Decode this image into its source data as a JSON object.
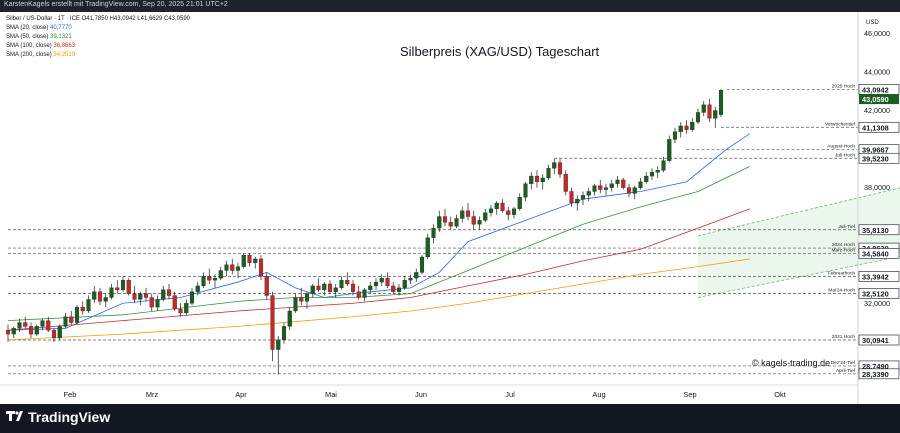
{
  "header": {
    "attribution": "KarstenKagels erstellt mit TradingView.com, Sep 20, 2025 21:01 UTC+2"
  },
  "symbol_line": "Silber / US-Dollar · 1T · ICE  O41,7850  H43,0942  L41,6629  C43,0590",
  "legend": [
    {
      "label": "SMA (20, close)",
      "value": "40,7770",
      "color": "#2962ff"
    },
    {
      "label": "SMA (50, close)",
      "value": "39,1321",
      "color": "#388e3c"
    },
    {
      "label": "SMA (100, close)",
      "value": "36,8663",
      "color": "#c62828"
    },
    {
      "label": "SMA (200, close)",
      "value": "34,2519",
      "color": "#ff9800"
    }
  ],
  "watermark": "© kagels-trading.de",
  "footer": {
    "brand": "TradingView"
  },
  "colors": {
    "up": "#26a69a",
    "down": "#ef5350",
    "candle_body": "#1b5e20",
    "channel_fill": "#e8f5e9",
    "channel_line": "#66bb6a",
    "level_line": "#555555",
    "current_price_bg": "#1b5e20"
  },
  "chart_data": {
    "type": "candlestick",
    "title": "Silberpreis (XAG/USD) Tageschart",
    "currency": "USD",
    "ylim": [
      27.5,
      46.8
    ],
    "y_ticks": [
      {
        "value": 46,
        "label": "46,0000"
      },
      {
        "value": 44,
        "label": "44,0000"
      },
      {
        "value": 42,
        "label": "42,0000"
      },
      {
        "value": 38,
        "label": "38,0000"
      },
      {
        "value": 32,
        "label": "32,0000"
      }
    ],
    "x_axis_labels": [
      "Feb",
      "Mrz",
      "Apr",
      "Mai",
      "Jun",
      "Jul",
      "Aug",
      "Sep",
      "Okt"
    ],
    "levels": [
      {
        "name": "2025 Hoch",
        "value": 43.0942,
        "label": "43,0942"
      },
      {
        "name": "Vorwochentief",
        "value": 41.1308,
        "label": "41,1308"
      },
      {
        "name": "August-Hoch",
        "value": 39.9667,
        "label": "39,9667"
      },
      {
        "name": "Juli-Hoch",
        "value": 39.523,
        "label": "39,5230"
      },
      {
        "name": "Juli-Tief",
        "value": 35.813,
        "label": "35,8130"
      },
      {
        "name": "2024 Hoch",
        "value": 34.863,
        "label": "34,8630"
      },
      {
        "name": "März-Hoch",
        "value": 34.584,
        "label": "34,5840"
      },
      {
        "name": "Februarhoch",
        "value": 33.3942,
        "label": "33,3942"
      },
      {
        "name": "Mai'24-Hoch",
        "value": 32.512,
        "label": "32,5120"
      },
      {
        "name": "2021 Hoch",
        "value": 30.0941,
        "label": "30,0941"
      },
      {
        "name": "Dez'24-Tief",
        "value": 28.749,
        "label": "28,7490"
      },
      {
        "name": "April-Tief",
        "value": 28.339,
        "label": "28,3390"
      }
    ],
    "current_price": {
      "value": 43.059,
      "label": "43,0590"
    },
    "channel": {
      "upper": [
        [
          120,
          35.5
        ],
        [
          260,
          45.4
        ]
      ],
      "lower": [
        [
          120,
          32.3
        ],
        [
          260,
          40.8
        ]
      ]
    },
    "candles": [
      [
        30.6,
        30.9,
        30.0,
        30.4
      ],
      [
        30.4,
        30.8,
        30.2,
        30.7
      ],
      [
        30.7,
        31.2,
        30.5,
        31.0
      ],
      [
        31.0,
        31.3,
        30.7,
        30.8
      ],
      [
        30.8,
        31.0,
        30.2,
        30.4
      ],
      [
        30.4,
        30.9,
        30.3,
        30.8
      ],
      [
        30.8,
        31.2,
        30.6,
        31.1
      ],
      [
        31.1,
        31.3,
        30.5,
        30.6
      ],
      [
        30.6,
        30.7,
        30.0,
        30.2
      ],
      [
        30.2,
        30.9,
        30.1,
        30.8
      ],
      [
        30.8,
        31.5,
        30.7,
        31.3
      ],
      [
        31.3,
        31.6,
        30.9,
        31.0
      ],
      [
        31.0,
        31.9,
        30.9,
        31.8
      ],
      [
        31.8,
        32.1,
        31.4,
        31.6
      ],
      [
        31.6,
        32.4,
        31.5,
        32.2
      ],
      [
        32.2,
        32.9,
        32.0,
        32.6
      ],
      [
        32.6,
        32.8,
        31.9,
        32.1
      ],
      [
        32.1,
        32.5,
        31.8,
        32.3
      ],
      [
        32.3,
        33.0,
        32.2,
        32.8
      ],
      [
        32.8,
        33.2,
        32.5,
        32.7
      ],
      [
        32.7,
        33.4,
        32.6,
        33.2
      ],
      [
        33.2,
        33.3,
        32.4,
        32.5
      ],
      [
        32.5,
        32.9,
        32.0,
        32.2
      ],
      [
        32.2,
        32.6,
        31.9,
        32.5
      ],
      [
        32.5,
        32.8,
        32.1,
        32.3
      ],
      [
        32.3,
        32.5,
        31.6,
        31.8
      ],
      [
        31.8,
        32.4,
        31.6,
        32.2
      ],
      [
        32.2,
        32.9,
        32.1,
        32.7
      ],
      [
        32.7,
        33.0,
        32.2,
        32.4
      ],
      [
        32.4,
        32.6,
        31.6,
        31.7
      ],
      [
        31.7,
        32.0,
        31.3,
        31.5
      ],
      [
        31.5,
        32.2,
        31.4,
        32.0
      ],
      [
        32.0,
        32.8,
        31.9,
        32.6
      ],
      [
        32.6,
        33.1,
        32.4,
        32.9
      ],
      [
        32.9,
        33.6,
        32.8,
        33.4
      ],
      [
        33.4,
        33.8,
        33.0,
        33.2
      ],
      [
        33.2,
        33.5,
        32.8,
        33.3
      ],
      [
        33.3,
        33.9,
        33.2,
        33.7
      ],
      [
        33.7,
        34.2,
        33.4,
        34.0
      ],
      [
        34.0,
        34.3,
        33.5,
        33.7
      ],
      [
        33.7,
        34.1,
        33.3,
        33.9
      ],
      [
        33.9,
        34.6,
        33.8,
        34.5
      ],
      [
        34.5,
        34.6,
        33.9,
        34.1
      ],
      [
        34.1,
        34.4,
        33.8,
        34.3
      ],
      [
        34.3,
        34.5,
        33.2,
        33.4
      ],
      [
        33.4,
        33.6,
        32.2,
        32.4
      ],
      [
        32.4,
        32.6,
        29.0,
        29.6
      ],
      [
        29.6,
        30.3,
        28.3,
        30.1
      ],
      [
        30.1,
        31.0,
        29.9,
        30.8
      ],
      [
        30.8,
        31.8,
        30.6,
        31.6
      ],
      [
        31.6,
        32.5,
        31.5,
        32.3
      ],
      [
        32.3,
        32.8,
        31.9,
        32.1
      ],
      [
        32.1,
        32.6,
        31.7,
        32.5
      ],
      [
        32.5,
        33.0,
        32.3,
        32.9
      ],
      [
        32.9,
        33.3,
        32.6,
        32.7
      ],
      [
        32.7,
        33.1,
        32.4,
        33.0
      ],
      [
        33.0,
        33.2,
        32.5,
        32.6
      ],
      [
        32.6,
        33.0,
        32.3,
        32.8
      ],
      [
        32.8,
        33.4,
        32.7,
        33.2
      ],
      [
        33.2,
        33.6,
        32.9,
        33.0
      ],
      [
        33.0,
        33.2,
        32.4,
        32.6
      ],
      [
        32.6,
        32.9,
        32.2,
        32.3
      ],
      [
        32.3,
        32.8,
        32.1,
        32.7
      ],
      [
        32.7,
        33.1,
        32.5,
        32.9
      ],
      [
        32.9,
        33.3,
        32.7,
        33.1
      ],
      [
        33.1,
        33.5,
        32.9,
        33.3
      ],
      [
        33.3,
        33.6,
        32.8,
        32.9
      ],
      [
        32.9,
        33.1,
        32.5,
        32.6
      ],
      [
        32.6,
        33.0,
        32.4,
        32.8
      ],
      [
        32.8,
        33.4,
        32.7,
        33.2
      ],
      [
        33.2,
        33.5,
        33.0,
        33.3
      ],
      [
        33.3,
        33.8,
        33.1,
        33.6
      ],
      [
        33.6,
        34.5,
        33.5,
        34.4
      ],
      [
        34.4,
        35.6,
        34.3,
        35.4
      ],
      [
        35.4,
        36.1,
        35.1,
        35.9
      ],
      [
        35.9,
        36.8,
        35.7,
        36.5
      ],
      [
        36.5,
        36.9,
        36.0,
        36.2
      ],
      [
        36.2,
        36.5,
        35.8,
        36.0
      ],
      [
        36.0,
        36.6,
        35.9,
        36.4
      ],
      [
        36.4,
        37.0,
        36.2,
        36.8
      ],
      [
        36.8,
        37.2,
        36.3,
        36.5
      ],
      [
        36.5,
        36.8,
        35.8,
        36.1
      ],
      [
        36.1,
        36.5,
        35.8,
        36.3
      ],
      [
        36.3,
        36.9,
        36.2,
        36.7
      ],
      [
        36.7,
        37.1,
        36.5,
        36.9
      ],
      [
        36.9,
        37.3,
        36.6,
        37.2
      ],
      [
        37.2,
        37.4,
        36.7,
        36.8
      ],
      [
        36.8,
        37.0,
        36.3,
        36.6
      ],
      [
        36.6,
        37.0,
        36.4,
        36.9
      ],
      [
        36.9,
        37.7,
        36.8,
        37.5
      ],
      [
        37.5,
        38.3,
        37.3,
        38.2
      ],
      [
        38.2,
        38.8,
        37.9,
        38.6
      ],
      [
        38.6,
        38.9,
        38.0,
        38.3
      ],
      [
        38.3,
        38.7,
        37.9,
        38.5
      ],
      [
        38.5,
        39.2,
        38.4,
        39.0
      ],
      [
        39.0,
        39.5,
        38.7,
        39.3
      ],
      [
        39.3,
        39.5,
        38.5,
        38.7
      ],
      [
        38.7,
        38.9,
        37.6,
        37.8
      ],
      [
        37.8,
        38.0,
        37.0,
        37.2
      ],
      [
        37.2,
        37.6,
        36.8,
        37.4
      ],
      [
        37.4,
        37.8,
        37.1,
        37.6
      ],
      [
        37.6,
        38.0,
        37.3,
        37.8
      ],
      [
        37.8,
        38.2,
        37.6,
        38.1
      ],
      [
        38.1,
        38.4,
        37.7,
        37.9
      ],
      [
        37.9,
        38.2,
        37.6,
        38.0
      ],
      [
        38.0,
        38.4,
        37.8,
        38.2
      ],
      [
        38.2,
        38.6,
        38.0,
        38.4
      ],
      [
        38.4,
        38.5,
        37.9,
        38.0
      ],
      [
        38.0,
        38.2,
        37.5,
        37.7
      ],
      [
        37.7,
        38.1,
        37.4,
        38.0
      ],
      [
        38.0,
        38.5,
        37.9,
        38.3
      ],
      [
        38.3,
        38.8,
        38.2,
        38.6
      ],
      [
        38.6,
        39.0,
        38.4,
        38.8
      ],
      [
        38.8,
        39.1,
        38.5,
        38.9
      ],
      [
        38.9,
        39.6,
        38.8,
        39.4
      ],
      [
        39.4,
        40.7,
        39.3,
        40.5
      ],
      [
        40.5,
        41.1,
        40.3,
        40.9
      ],
      [
        40.9,
        41.4,
        40.6,
        41.2
      ],
      [
        41.2,
        41.5,
        40.8,
        41.0
      ],
      [
        41.0,
        41.6,
        40.9,
        41.4
      ],
      [
        41.4,
        42.1,
        41.3,
        41.9
      ],
      [
        41.9,
        42.5,
        41.7,
        42.3
      ],
      [
        42.3,
        42.6,
        41.4,
        41.6
      ],
      [
        41.6,
        42.2,
        41.1,
        42.0
      ],
      [
        41.785,
        43.0942,
        41.6629,
        43.059
      ]
    ],
    "sma": {
      "SMA 20": [
        [
          0,
          30.6
        ],
        [
          10,
          30.7
        ],
        [
          20,
          32.0
        ],
        [
          30,
          32.3
        ],
        [
          40,
          33.1
        ],
        [
          45,
          33.6
        ],
        [
          50,
          32.8
        ],
        [
          55,
          32.3
        ],
        [
          60,
          32.5
        ],
        [
          70,
          32.8
        ],
        [
          75,
          33.6
        ],
        [
          80,
          35.2
        ],
        [
          90,
          36.3
        ],
        [
          100,
          37.4
        ],
        [
          110,
          37.8
        ],
        [
          118,
          38.3
        ],
        [
          125,
          40.0
        ],
        [
          129,
          40.8
        ]
      ],
      "SMA 50": [
        [
          0,
          31.1
        ],
        [
          20,
          31.4
        ],
        [
          40,
          32.1
        ],
        [
          50,
          32.3
        ],
        [
          60,
          32.3
        ],
        [
          70,
          32.5
        ],
        [
          80,
          33.7
        ],
        [
          90,
          34.9
        ],
        [
          100,
          36.1
        ],
        [
          110,
          37.0
        ],
        [
          120,
          37.8
        ],
        [
          129,
          39.1
        ]
      ],
      "SMA 100": [
        [
          0,
          30.6
        ],
        [
          20,
          31.1
        ],
        [
          40,
          31.6
        ],
        [
          60,
          32.0
        ],
        [
          70,
          32.3
        ],
        [
          80,
          32.9
        ],
        [
          90,
          33.5
        ],
        [
          100,
          34.2
        ],
        [
          110,
          34.8
        ],
        [
          120,
          35.9
        ],
        [
          129,
          36.9
        ]
      ],
      "SMA 200": [
        [
          0,
          30.1
        ],
        [
          20,
          30.4
        ],
        [
          40,
          30.8
        ],
        [
          60,
          31.3
        ],
        [
          70,
          31.6
        ],
        [
          80,
          32.0
        ],
        [
          90,
          32.5
        ],
        [
          100,
          33.0
        ],
        [
          110,
          33.5
        ],
        [
          120,
          33.9
        ],
        [
          129,
          34.3
        ]
      ]
    }
  }
}
